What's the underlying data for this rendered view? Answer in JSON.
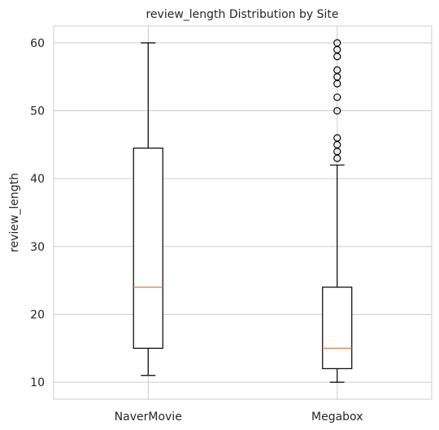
{
  "chart_data": {
    "type": "boxplot",
    "title": "review_length Distribution by Site",
    "xlabel": "",
    "ylabel": "review_length",
    "ylim": [
      7.5,
      62.5
    ],
    "yticks": [
      10,
      20,
      30,
      40,
      50,
      60
    ],
    "grid": true,
    "categories": [
      "NaverMovie",
      "Megabox"
    ],
    "boxes": [
      {
        "name": "NaverMovie",
        "whislo": 11,
        "q1": 15,
        "med": 24,
        "q3": 44.5,
        "whishi": 60,
        "fliers": []
      },
      {
        "name": "Megabox",
        "whislo": 10,
        "q1": 12,
        "med": 15,
        "q3": 24,
        "whishi": 42,
        "fliers": [
          43,
          44,
          45,
          46,
          50,
          52,
          54,
          55,
          56,
          58,
          59,
          60
        ]
      }
    ],
    "colors": {
      "box": "#000000",
      "median": "#e07b54",
      "grid": "#cccccc",
      "axes": "#cccccc"
    }
  }
}
